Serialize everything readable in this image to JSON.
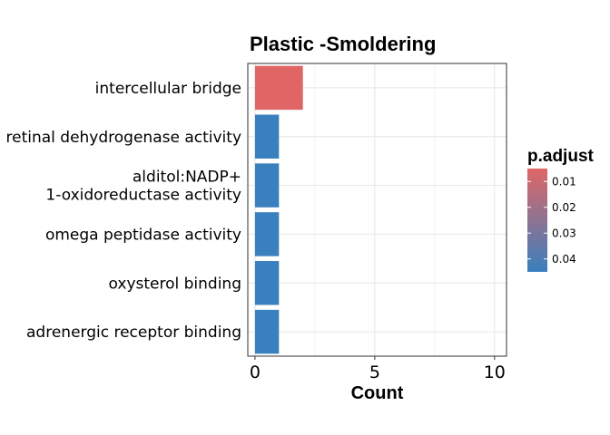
{
  "chart_data": {
    "type": "bar",
    "orientation": "horizontal",
    "title": "Plastic -Smoldering",
    "xlabel": "Count",
    "ylabel": "",
    "xlim": [
      -0.3,
      10.5
    ],
    "x_ticks": [
      0,
      5,
      10
    ],
    "x_tick_labels": [
      "0",
      "5",
      "10"
    ],
    "grid": true,
    "categories": [
      {
        "lines": [
          "intercellular bridge"
        ]
      },
      {
        "lines": [
          "retinal dehydrogenase activity"
        ]
      },
      {
        "lines": [
          "alditol:NADP+",
          "1-oxidoreductase activity"
        ]
      },
      {
        "lines": [
          "omega peptidase activity"
        ]
      },
      {
        "lines": [
          "oxysterol binding"
        ]
      },
      {
        "lines": [
          "adrenergic receptor binding"
        ]
      }
    ],
    "values": [
      2,
      1,
      1,
      1,
      1,
      1
    ],
    "p_adjust": [
      0.005,
      0.045,
      0.045,
      0.045,
      0.045,
      0.045
    ],
    "legend": {
      "title": "p.adjust",
      "position": "right",
      "ticks": [
        0.01,
        0.02,
        0.03,
        0.04
      ],
      "tick_labels": [
        "0.01",
        "0.02",
        "0.03",
        "0.04"
      ],
      "range": [
        0.005,
        0.045
      ],
      "low_color": "#E06666",
      "high_color": "#3A7FBE"
    }
  }
}
